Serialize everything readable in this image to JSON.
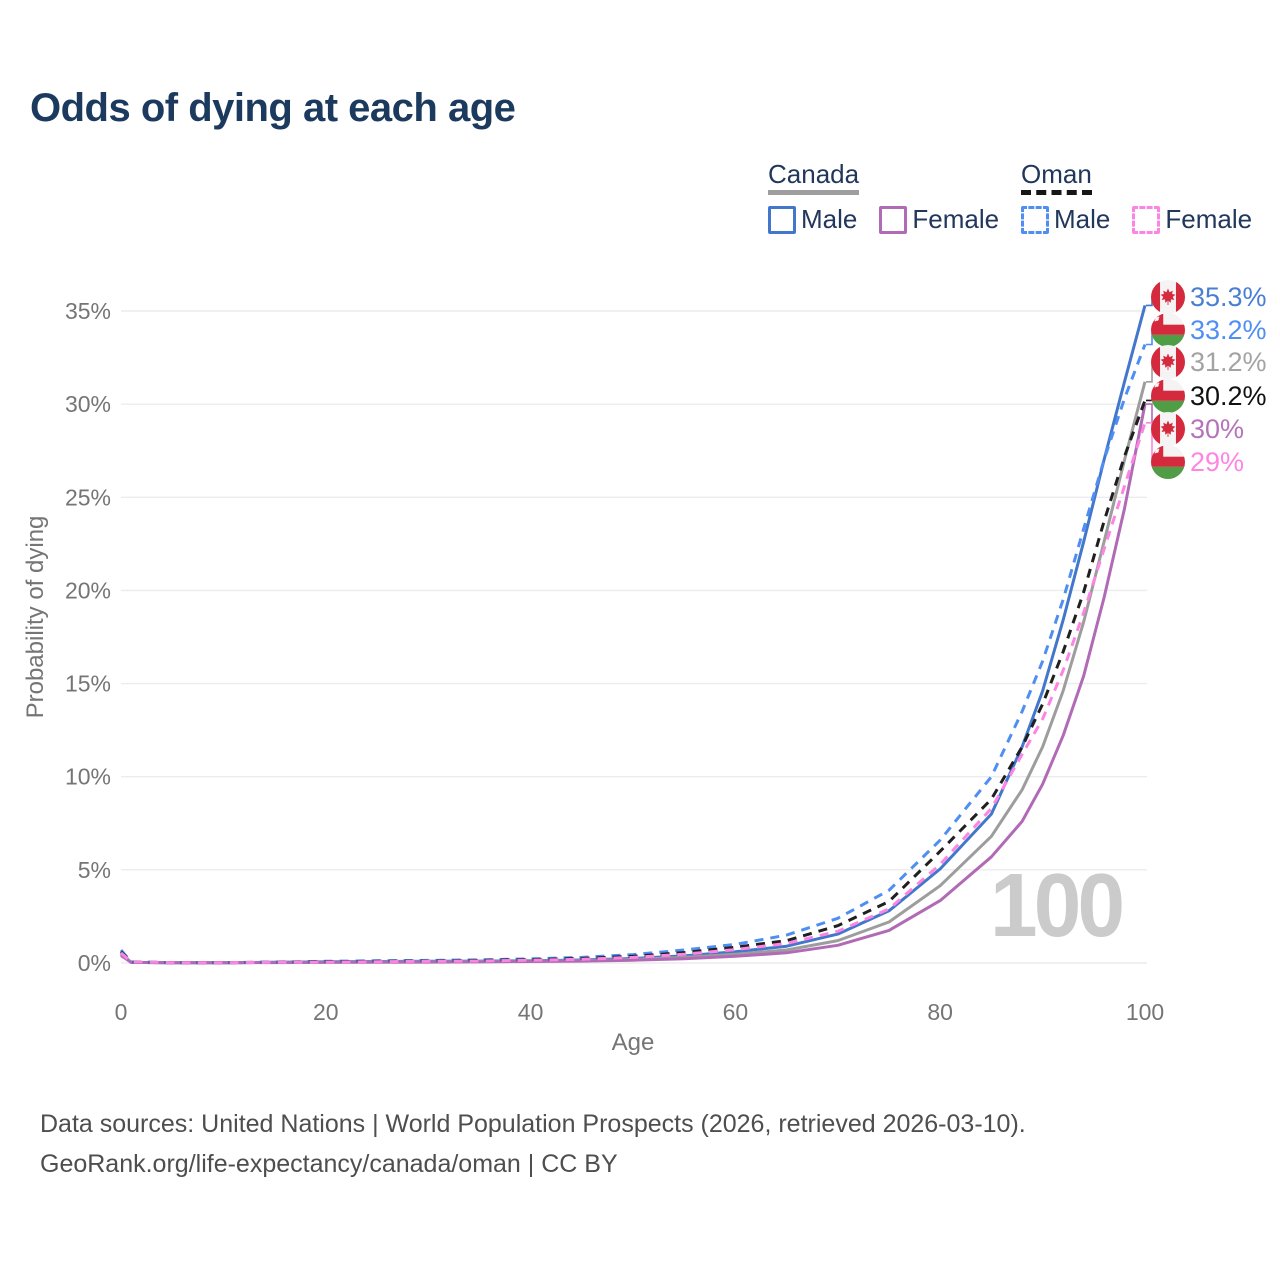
{
  "page": {
    "title": "Odds of dying at each age",
    "footer_line1": "Data sources: United Nations | World Population Prospects (2026, retrieved 2026-03-10).",
    "footer_line2": "GeoRank.org/life-expectancy/canada/oman | CC BY"
  },
  "colors": {
    "title_text": "#1b3a5e",
    "legend_text": "#22375c",
    "axis_text": "#757575",
    "gridline": "#ececec",
    "watermark": "#cbcbcb",
    "footer_text": "#4e4e4e"
  },
  "legend": {
    "groups": [
      {
        "label": "Canada",
        "rule_style": "solid",
        "rule_color": "#9e9e9e",
        "items": [
          {
            "label": "Male",
            "color": "#4377cb",
            "dashed": false
          },
          {
            "label": "Female",
            "color": "#b16ab5",
            "dashed": false
          }
        ]
      },
      {
        "label": "Oman",
        "rule_style": "dashed",
        "rule_color": "#161616",
        "items": [
          {
            "label": "Male",
            "color": "#4f8ef2",
            "dashed": true
          },
          {
            "label": "Female",
            "color": "#fc85e3",
            "dashed": true
          }
        ]
      }
    ]
  },
  "chart_data": {
    "type": "line",
    "title": "Odds of dying at each age",
    "xlabel": "Age",
    "ylabel": "Probability of dying",
    "xlim": [
      0,
      100
    ],
    "ylim": [
      0,
      36.5
    ],
    "xticks": [
      0,
      20,
      40,
      60,
      80,
      100
    ],
    "yticks": [
      0,
      5,
      10,
      15,
      20,
      25,
      30,
      35
    ],
    "ytick_labels": [
      "0%",
      "5%",
      "10%",
      "15%",
      "20%",
      "25%",
      "30%",
      "35%"
    ],
    "grid": "horizontal",
    "legend_position": "top-right",
    "age_indicator": "100",
    "ages": [
      0,
      1,
      5,
      10,
      15,
      20,
      25,
      30,
      35,
      40,
      45,
      50,
      55,
      60,
      65,
      70,
      75,
      80,
      85,
      88,
      90,
      92,
      94,
      96,
      98,
      100
    ],
    "series": [
      {
        "name": "Canada Male",
        "country": "Canada",
        "sex": "Male",
        "flag": "canada",
        "color": "#4377cb",
        "label_color": "#4a7ed2",
        "dashed": false,
        "end_label": "35.3%",
        "values": [
          0.5,
          0.03,
          0.01,
          0.01,
          0.04,
          0.07,
          0.08,
          0.09,
          0.1,
          0.12,
          0.16,
          0.24,
          0.38,
          0.6,
          0.9,
          1.55,
          2.8,
          5.05,
          8.0,
          11.6,
          14.6,
          18.4,
          22.6,
          27.0,
          31.2,
          35.3
        ]
      },
      {
        "name": "Oman Male",
        "country": "Oman",
        "sex": "Male",
        "flag": "oman",
        "color": "#4f8ef2",
        "label_color": "#4f8ef2",
        "dashed": true,
        "end_label": "33.2%",
        "values": [
          0.7,
          0.06,
          0.02,
          0.02,
          0.05,
          0.09,
          0.12,
          0.14,
          0.17,
          0.22,
          0.3,
          0.45,
          0.7,
          1.0,
          1.5,
          2.4,
          3.9,
          6.6,
          10.0,
          13.5,
          16.2,
          19.5,
          23.3,
          27.0,
          30.3,
          33.2
        ]
      },
      {
        "name": "Canada",
        "country": "Canada",
        "sex": "Both",
        "flag": "canada",
        "color": "#9d9d9d",
        "label_color": "#a3a3a3",
        "dashed": false,
        "end_label": "31.2%",
        "values": [
          0.45,
          0.03,
          0.01,
          0.01,
          0.03,
          0.05,
          0.06,
          0.07,
          0.08,
          0.1,
          0.13,
          0.19,
          0.3,
          0.47,
          0.7,
          1.2,
          2.2,
          4.15,
          6.8,
          9.3,
          11.6,
          14.6,
          18.3,
          22.6,
          27.0,
          31.2
        ]
      },
      {
        "name": "Oman",
        "country": "Oman",
        "sex": "Both",
        "flag": "oman",
        "color": "#1f1f1f",
        "label_color": "#111111",
        "dashed": true,
        "end_label": "30.2%",
        "values": [
          0.6,
          0.05,
          0.02,
          0.02,
          0.04,
          0.07,
          0.09,
          0.11,
          0.14,
          0.18,
          0.24,
          0.36,
          0.56,
          0.85,
          1.2,
          2.0,
          3.3,
          6.0,
          8.8,
          11.6,
          13.9,
          16.7,
          19.9,
          23.7,
          27.2,
          30.2
        ]
      },
      {
        "name": "Canada Female",
        "country": "Canada",
        "sex": "Female",
        "flag": "canada",
        "color": "#b16ab5",
        "label_color": "#b573bb",
        "dashed": false,
        "end_label": "30%",
        "values": [
          0.4,
          0.03,
          0.01,
          0.01,
          0.02,
          0.03,
          0.04,
          0.05,
          0.06,
          0.08,
          0.1,
          0.15,
          0.23,
          0.36,
          0.55,
          0.95,
          1.75,
          3.35,
          5.7,
          7.6,
          9.6,
          12.2,
          15.4,
          19.6,
          24.4,
          30.0
        ]
      },
      {
        "name": "Oman Female",
        "country": "Oman",
        "sex": "Female",
        "flag": "oman",
        "color": "#fc85e3",
        "label_color": "#fd86e4",
        "dashed": true,
        "end_label": "29%",
        "values": [
          0.55,
          0.05,
          0.02,
          0.02,
          0.03,
          0.05,
          0.07,
          0.09,
          0.11,
          0.15,
          0.2,
          0.3,
          0.47,
          0.72,
          1.05,
          1.7,
          2.9,
          5.3,
          8.3,
          11.2,
          13.1,
          15.7,
          18.8,
          22.2,
          25.6,
          29.0
        ]
      }
    ]
  }
}
